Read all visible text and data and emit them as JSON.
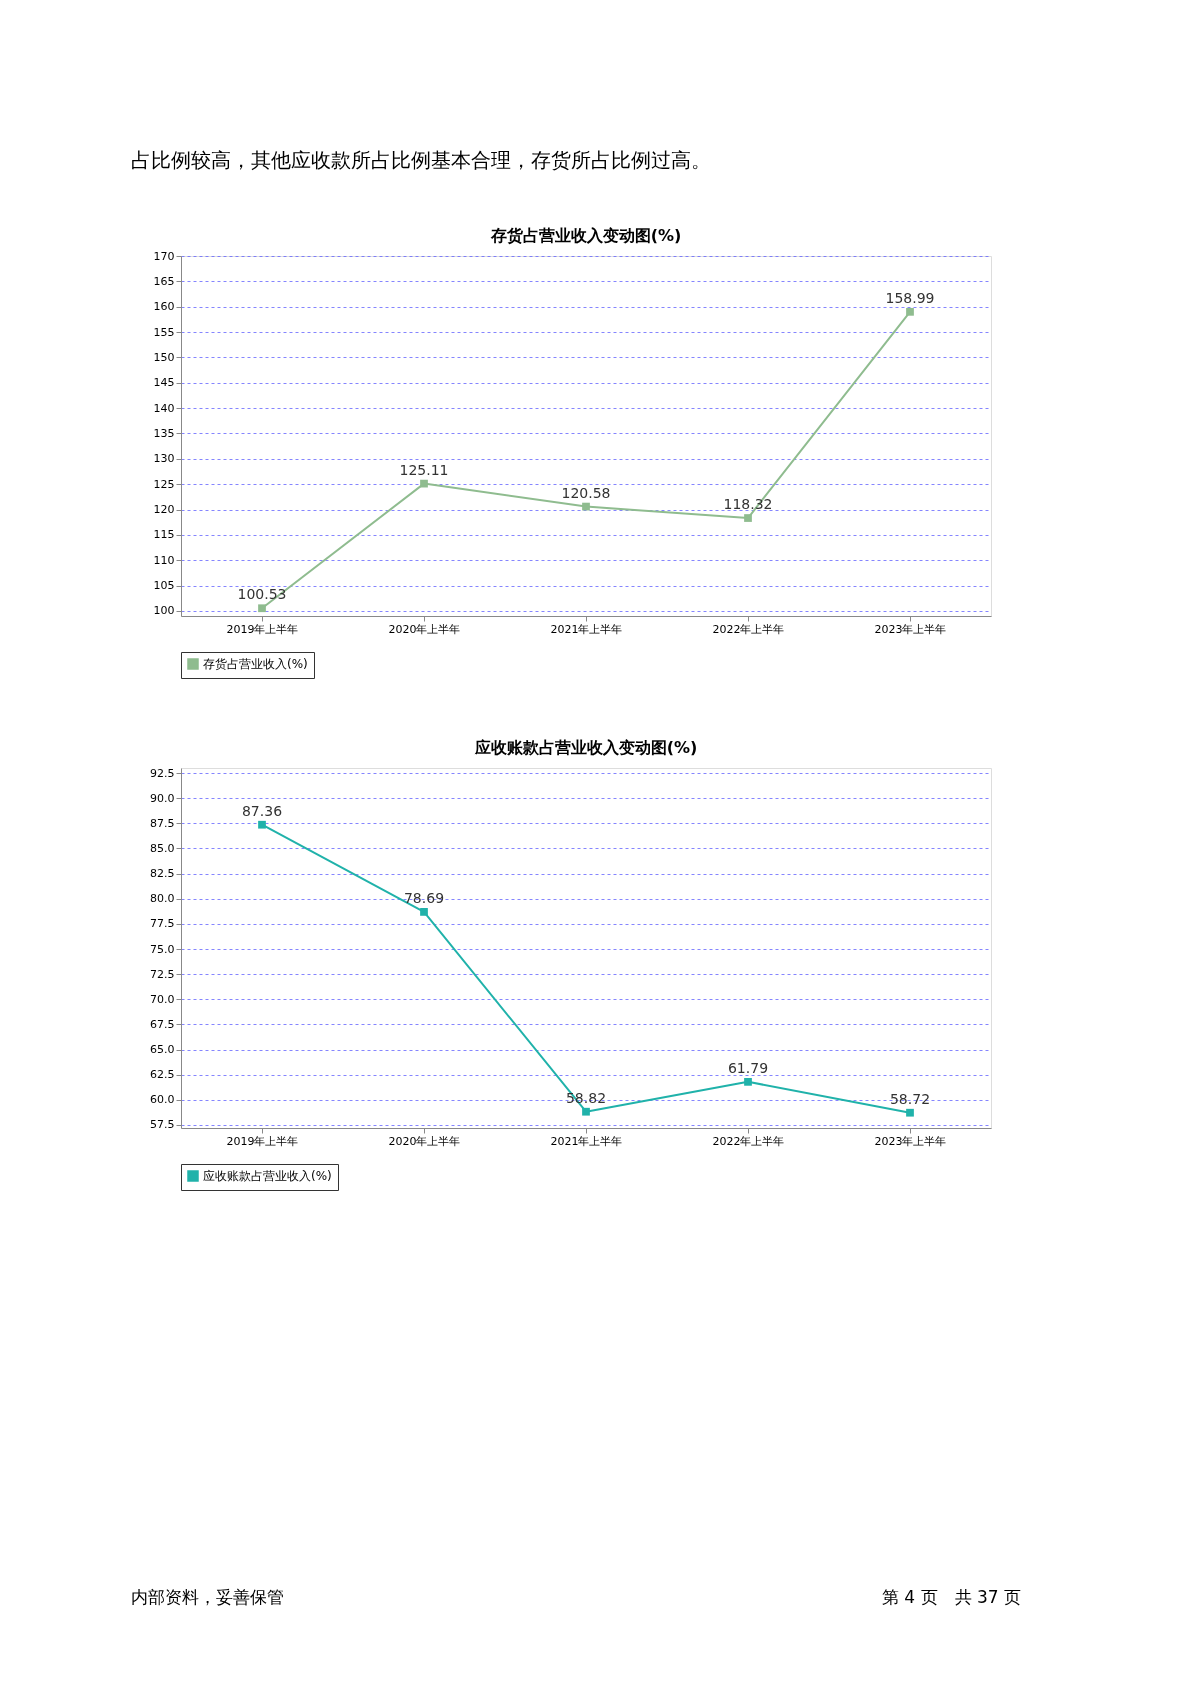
{
  "chart_data": [
    {
      "type": "line",
      "title": "存货占营业收入变动图(%)",
      "categories": [
        "2019年上半年",
        "2020年上半年",
        "2021年上半年",
        "2022年上半年",
        "2023年上半年"
      ],
      "series": [
        {
          "name": "存货占营业收入(%)",
          "color": "#8fbc8f",
          "values": [
            100.53,
            125.11,
            120.58,
            118.32,
            158.99
          ]
        }
      ],
      "ylim": [
        99,
        170
      ],
      "yticks": [
        100,
        105,
        110,
        115,
        120,
        125,
        130,
        135,
        140,
        145,
        150,
        155,
        160,
        165,
        170
      ],
      "grid": "y",
      "legend": "bottom",
      "marker": "square",
      "line_style": "solid",
      "data_labels": true,
      "annotations": [
        "占比例较高，其他应收款所占比例基本合理，存货所占比例过高。"
      ]
    },
    {
      "type": "line",
      "title": "应收账款占营业收入变动图(%)",
      "categories": [
        "2019年上半年",
        "2020年上半年",
        "2021年上半年",
        "2022年上半年",
        "2023年上半年"
      ],
      "series": [
        {
          "name": "应收账款占营业收入(%)",
          "color": "#20b2aa",
          "values": [
            87.36,
            78.69,
            58.82,
            61.79,
            58.72
          ]
        }
      ],
      "ylim": [
        57.2,
        93.0
      ],
      "yticks": [
        {
          "value": 57.5,
          "label": "57.5"
        },
        {
          "value": 60,
          "label": "60.0"
        },
        {
          "value": 62.5,
          "label": "62.5"
        },
        {
          "value": 65,
          "label": "65.0"
        },
        {
          "value": 67.5,
          "label": "67.5"
        },
        {
          "value": 70,
          "label": "70.0"
        },
        {
          "value": 72.5,
          "label": "72.5"
        },
        {
          "value": 75,
          "label": "75.0"
        },
        {
          "value": 77.5,
          "label": "77.5"
        },
        {
          "value": 80,
          "label": "80.0"
        },
        {
          "value": 82.5,
          "label": "82.5"
        },
        {
          "value": 85,
          "label": "85.0"
        },
        {
          "value": 87.5,
          "label": "87.5"
        },
        {
          "value": 90,
          "label": "90.0"
        },
        {
          "value": 92.5,
          "label": "92.5"
        }
      ],
      "grid": "y",
      "legend": "bottom",
      "marker": "square",
      "line_style": "solid",
      "data_labels": true,
      "annotations": [
        "内部资料，妥善保管",
        "第 4 页　共 37 页"
      ]
    }
  ]
}
